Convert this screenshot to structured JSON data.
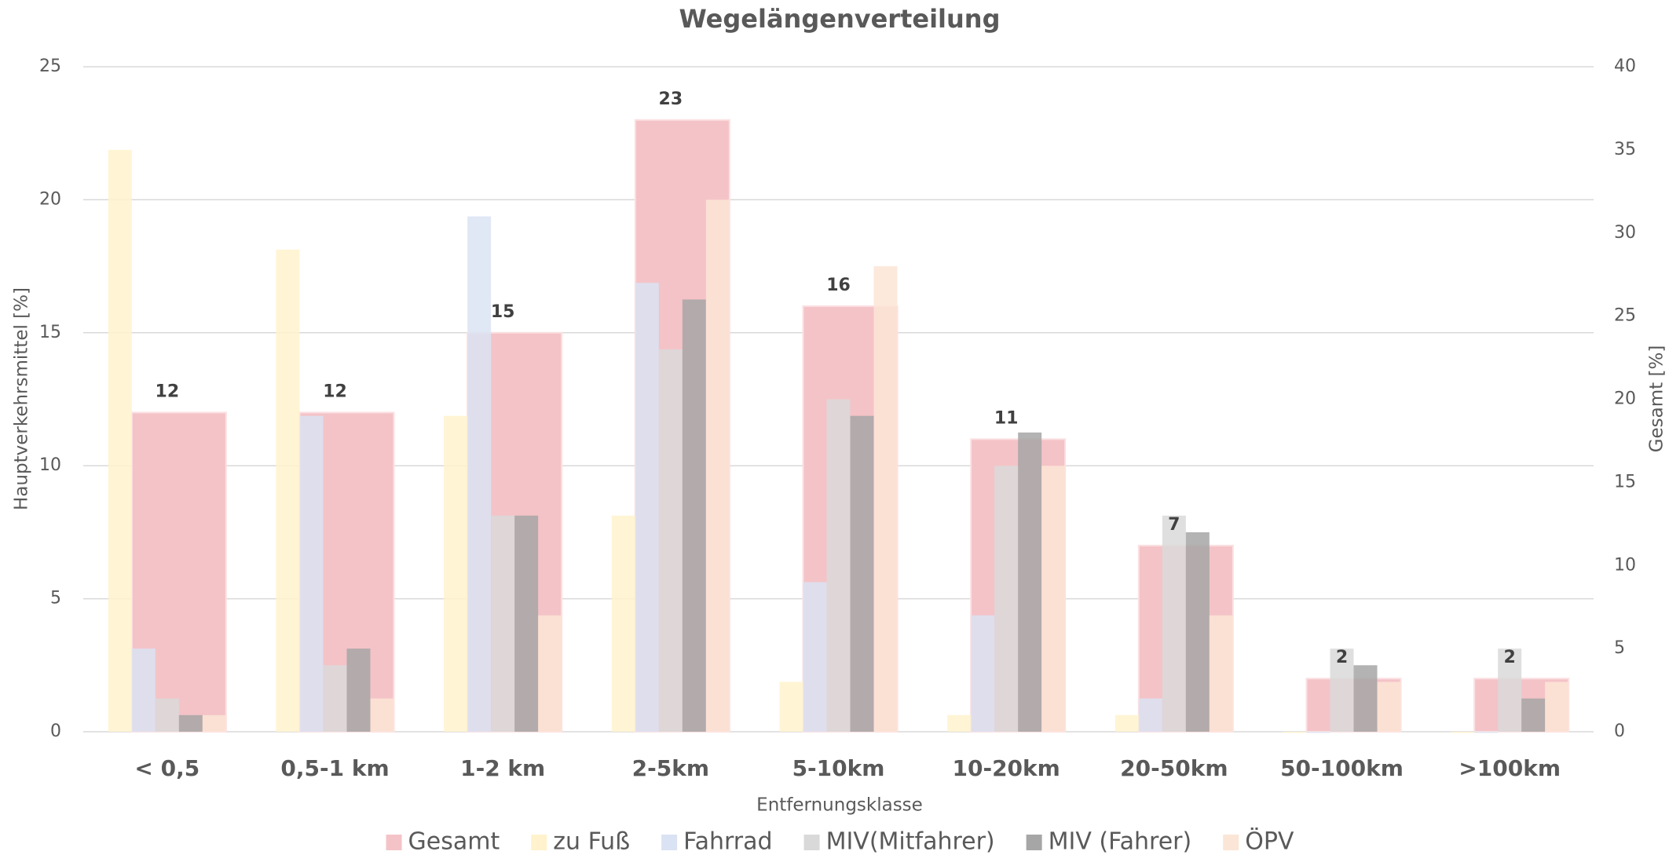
{
  "chart_data": {
    "type": "bar",
    "title": "Wegelängenverteilung",
    "x_label": "Entfernungsklasse",
    "y_label": "Hauptverkehrsmittel [%]",
    "y2_label": "Gesamt [%]",
    "categories": [
      "< 0,5",
      "0,5-1 km",
      "1-2 km",
      "2-5km",
      "5-10km",
      "10-20km",
      "20-50km",
      "50-100km",
      ">100km"
    ],
    "series": [
      {
        "name": "Gesamt",
        "color": "#f4c3c7",
        "axis": "y",
        "values": [
          12,
          12,
          15,
          23,
          16,
          11,
          7,
          2,
          2
        ]
      },
      {
        "name": "zu Fuß",
        "color": "#fff2cc",
        "axis": "y2",
        "values": [
          35,
          29,
          19,
          13,
          3,
          1,
          1,
          0,
          0
        ]
      },
      {
        "name": "Fahrrad",
        "color": "#dae3f3",
        "axis": "y2",
        "values": [
          5,
          19,
          31,
          27,
          9,
          7,
          2,
          0,
          0
        ]
      },
      {
        "name": "MIV(Mitfahrer)",
        "color": "#d9d9d9",
        "axis": "y2",
        "values": [
          2,
          4,
          13,
          23,
          20,
          16,
          13,
          5,
          5
        ]
      },
      {
        "name": "MIV (Fahrer)",
        "color": "#a6a6a6",
        "axis": "y2",
        "values": [
          1,
          5,
          13,
          26,
          19,
          18,
          12,
          4,
          2
        ]
      },
      {
        "name": "ÖPV",
        "color": "#fbe5d6",
        "axis": "y2",
        "values": [
          1,
          2,
          7,
          32,
          28,
          16,
          7,
          3,
          3
        ]
      }
    ],
    "ylim": [
      0,
      25
    ],
    "yticks": [
      0,
      5,
      10,
      15,
      20,
      25
    ],
    "y2lim": [
      0,
      40
    ],
    "y2ticks": [
      0,
      5,
      10,
      15,
      20,
      25,
      30,
      35,
      40
    ],
    "grid": true,
    "legend": "bottom"
  }
}
